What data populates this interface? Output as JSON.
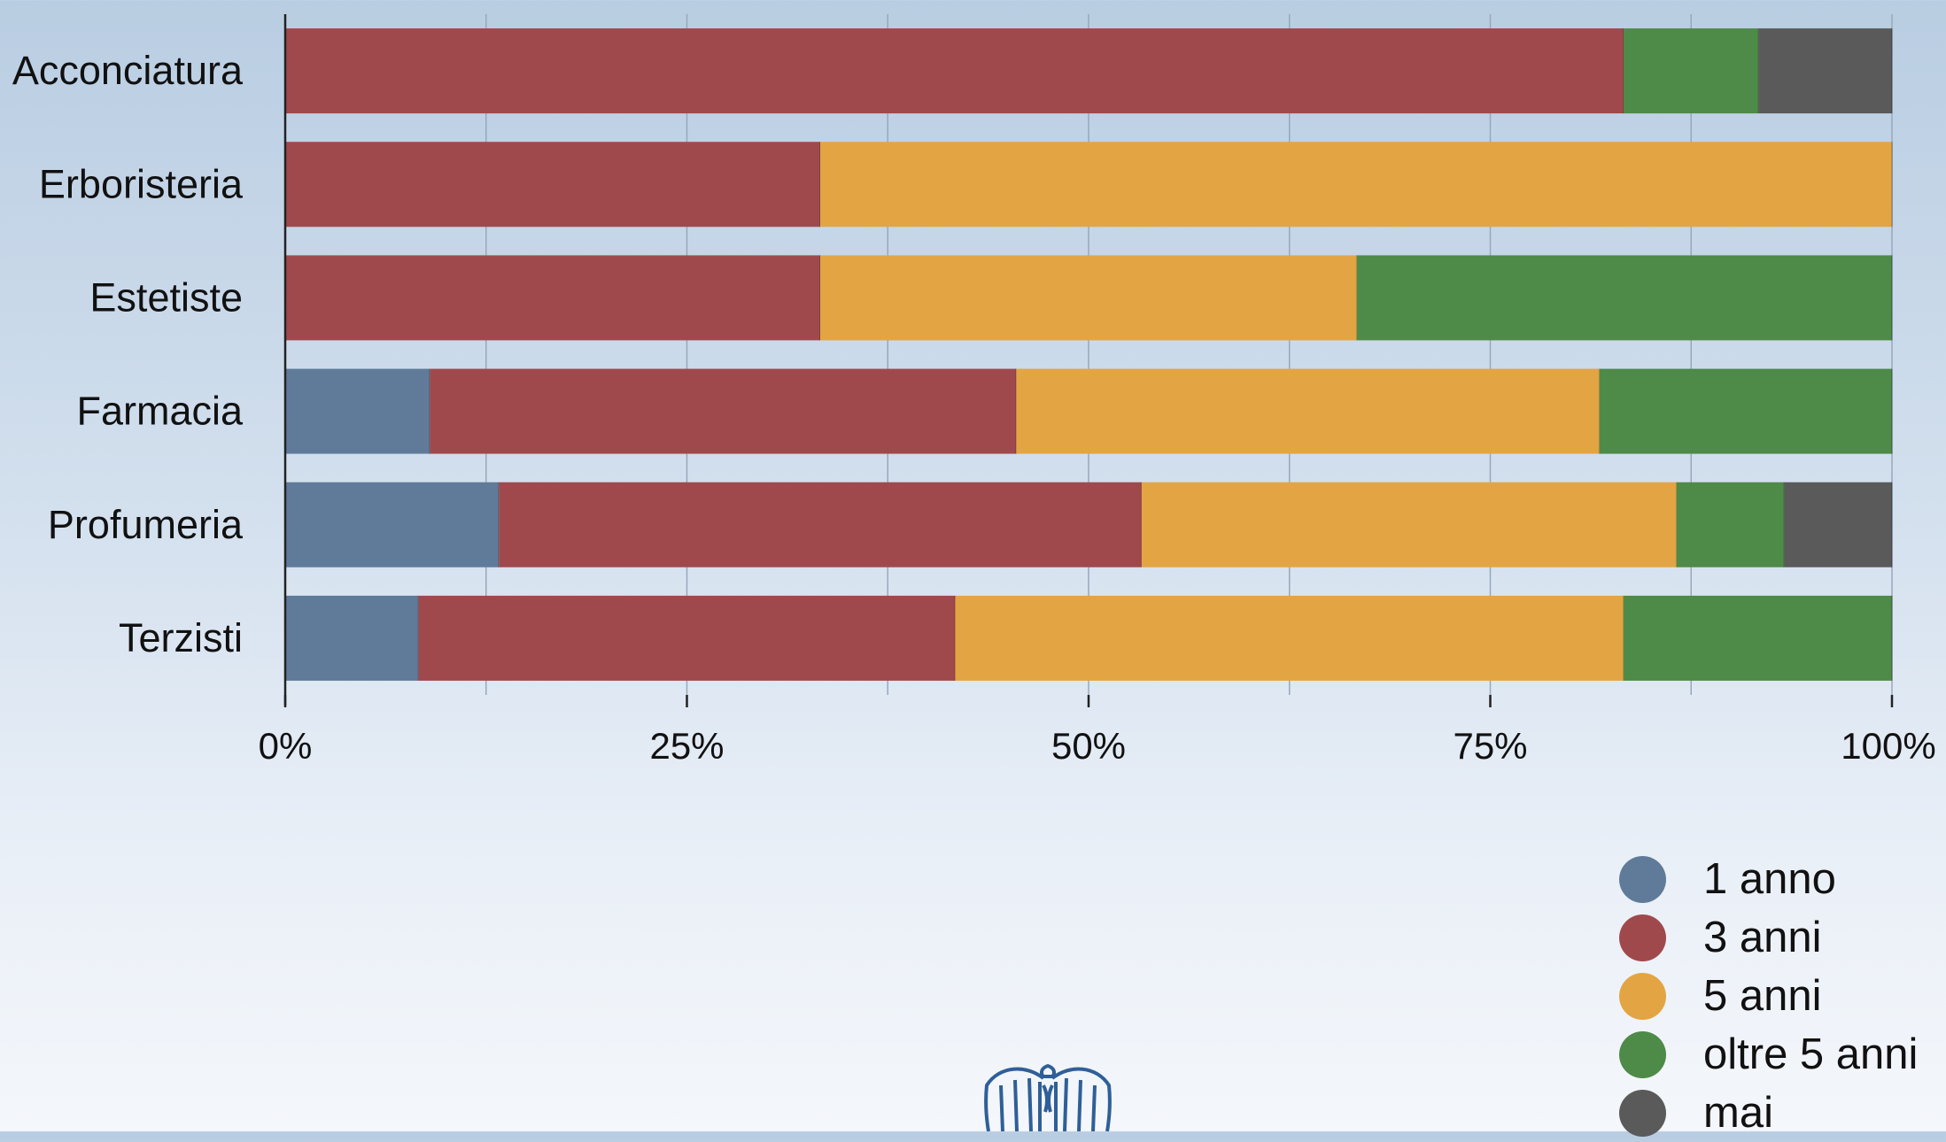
{
  "chart_data": {
    "type": "bar",
    "orientation": "horizontal",
    "stacked": "percent",
    "title": "",
    "xlabel": "",
    "ylabel": "",
    "xlim": [
      0,
      100
    ],
    "x_ticks": [
      "0%",
      "25%",
      "50%",
      "75%",
      "100%"
    ],
    "grid": true,
    "legend_position": "bottom-right",
    "categories": [
      "Acconciatura",
      "Erboristeria",
      "Estetiste",
      "Farmacia",
      "Profumeria",
      "Terzisti"
    ],
    "series": [
      {
        "name": "1 anno",
        "color": "#5f7b99",
        "values": [
          0,
          0,
          0,
          9,
          13.3,
          8.3
        ]
      },
      {
        "name": "3 anni",
        "color": "#a0494c",
        "values": [
          83.3,
          33.3,
          33.3,
          36.5,
          40,
          33.4
        ]
      },
      {
        "name": "5 anni",
        "color": "#e3a543",
        "values": [
          0,
          66.7,
          33.4,
          36.3,
          33.3,
          41.6
        ]
      },
      {
        "name": "oltre 5 anni",
        "color": "#4e8a48",
        "values": [
          8.4,
          0,
          33.3,
          18.2,
          6.7,
          16.7
        ]
      },
      {
        "name": "mai",
        "color": "#5a5a5a",
        "values": [
          8.3,
          0,
          0,
          0,
          6.7,
          0
        ]
      }
    ]
  },
  "logo": {
    "name": "eagle-logo-icon",
    "color": "#2f5f97"
  }
}
